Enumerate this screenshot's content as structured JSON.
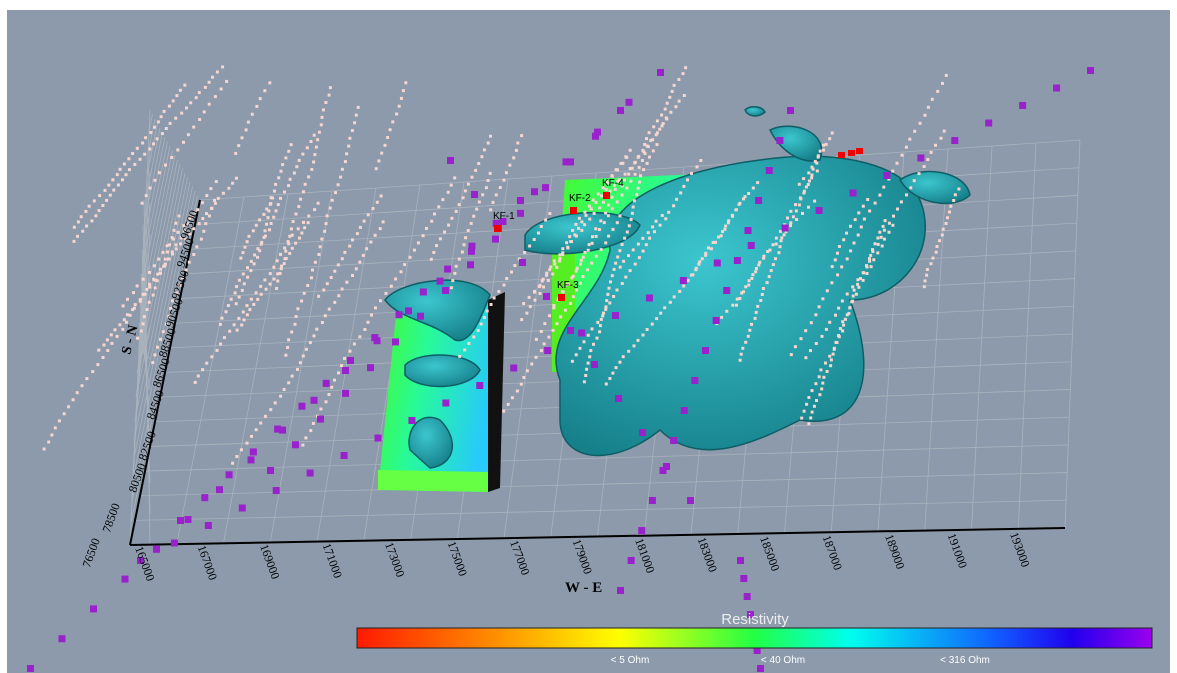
{
  "axes": {
    "x": {
      "title": "W - E",
      "ticks": [
        "165000",
        "167000",
        "169000",
        "171000",
        "173000",
        "175000",
        "177000",
        "179000",
        "181000",
        "183000",
        "185000",
        "187000",
        "189000",
        "191000",
        "193000"
      ]
    },
    "y": {
      "title": "S - N",
      "ticks": [
        "96500",
        "94500",
        "92500",
        "90500",
        "88500",
        "86500",
        "84500",
        "82500",
        "80500",
        "78500",
        "76500"
      ]
    }
  },
  "wells": [
    "KF-1",
    "KF-2",
    "KF-4",
    "KF-3"
  ],
  "legend": {
    "title": "Resistivity",
    "labels": [
      "< 5 Ohm",
      "< 40 Ohm",
      "< 316 Ohm"
    ]
  }
}
